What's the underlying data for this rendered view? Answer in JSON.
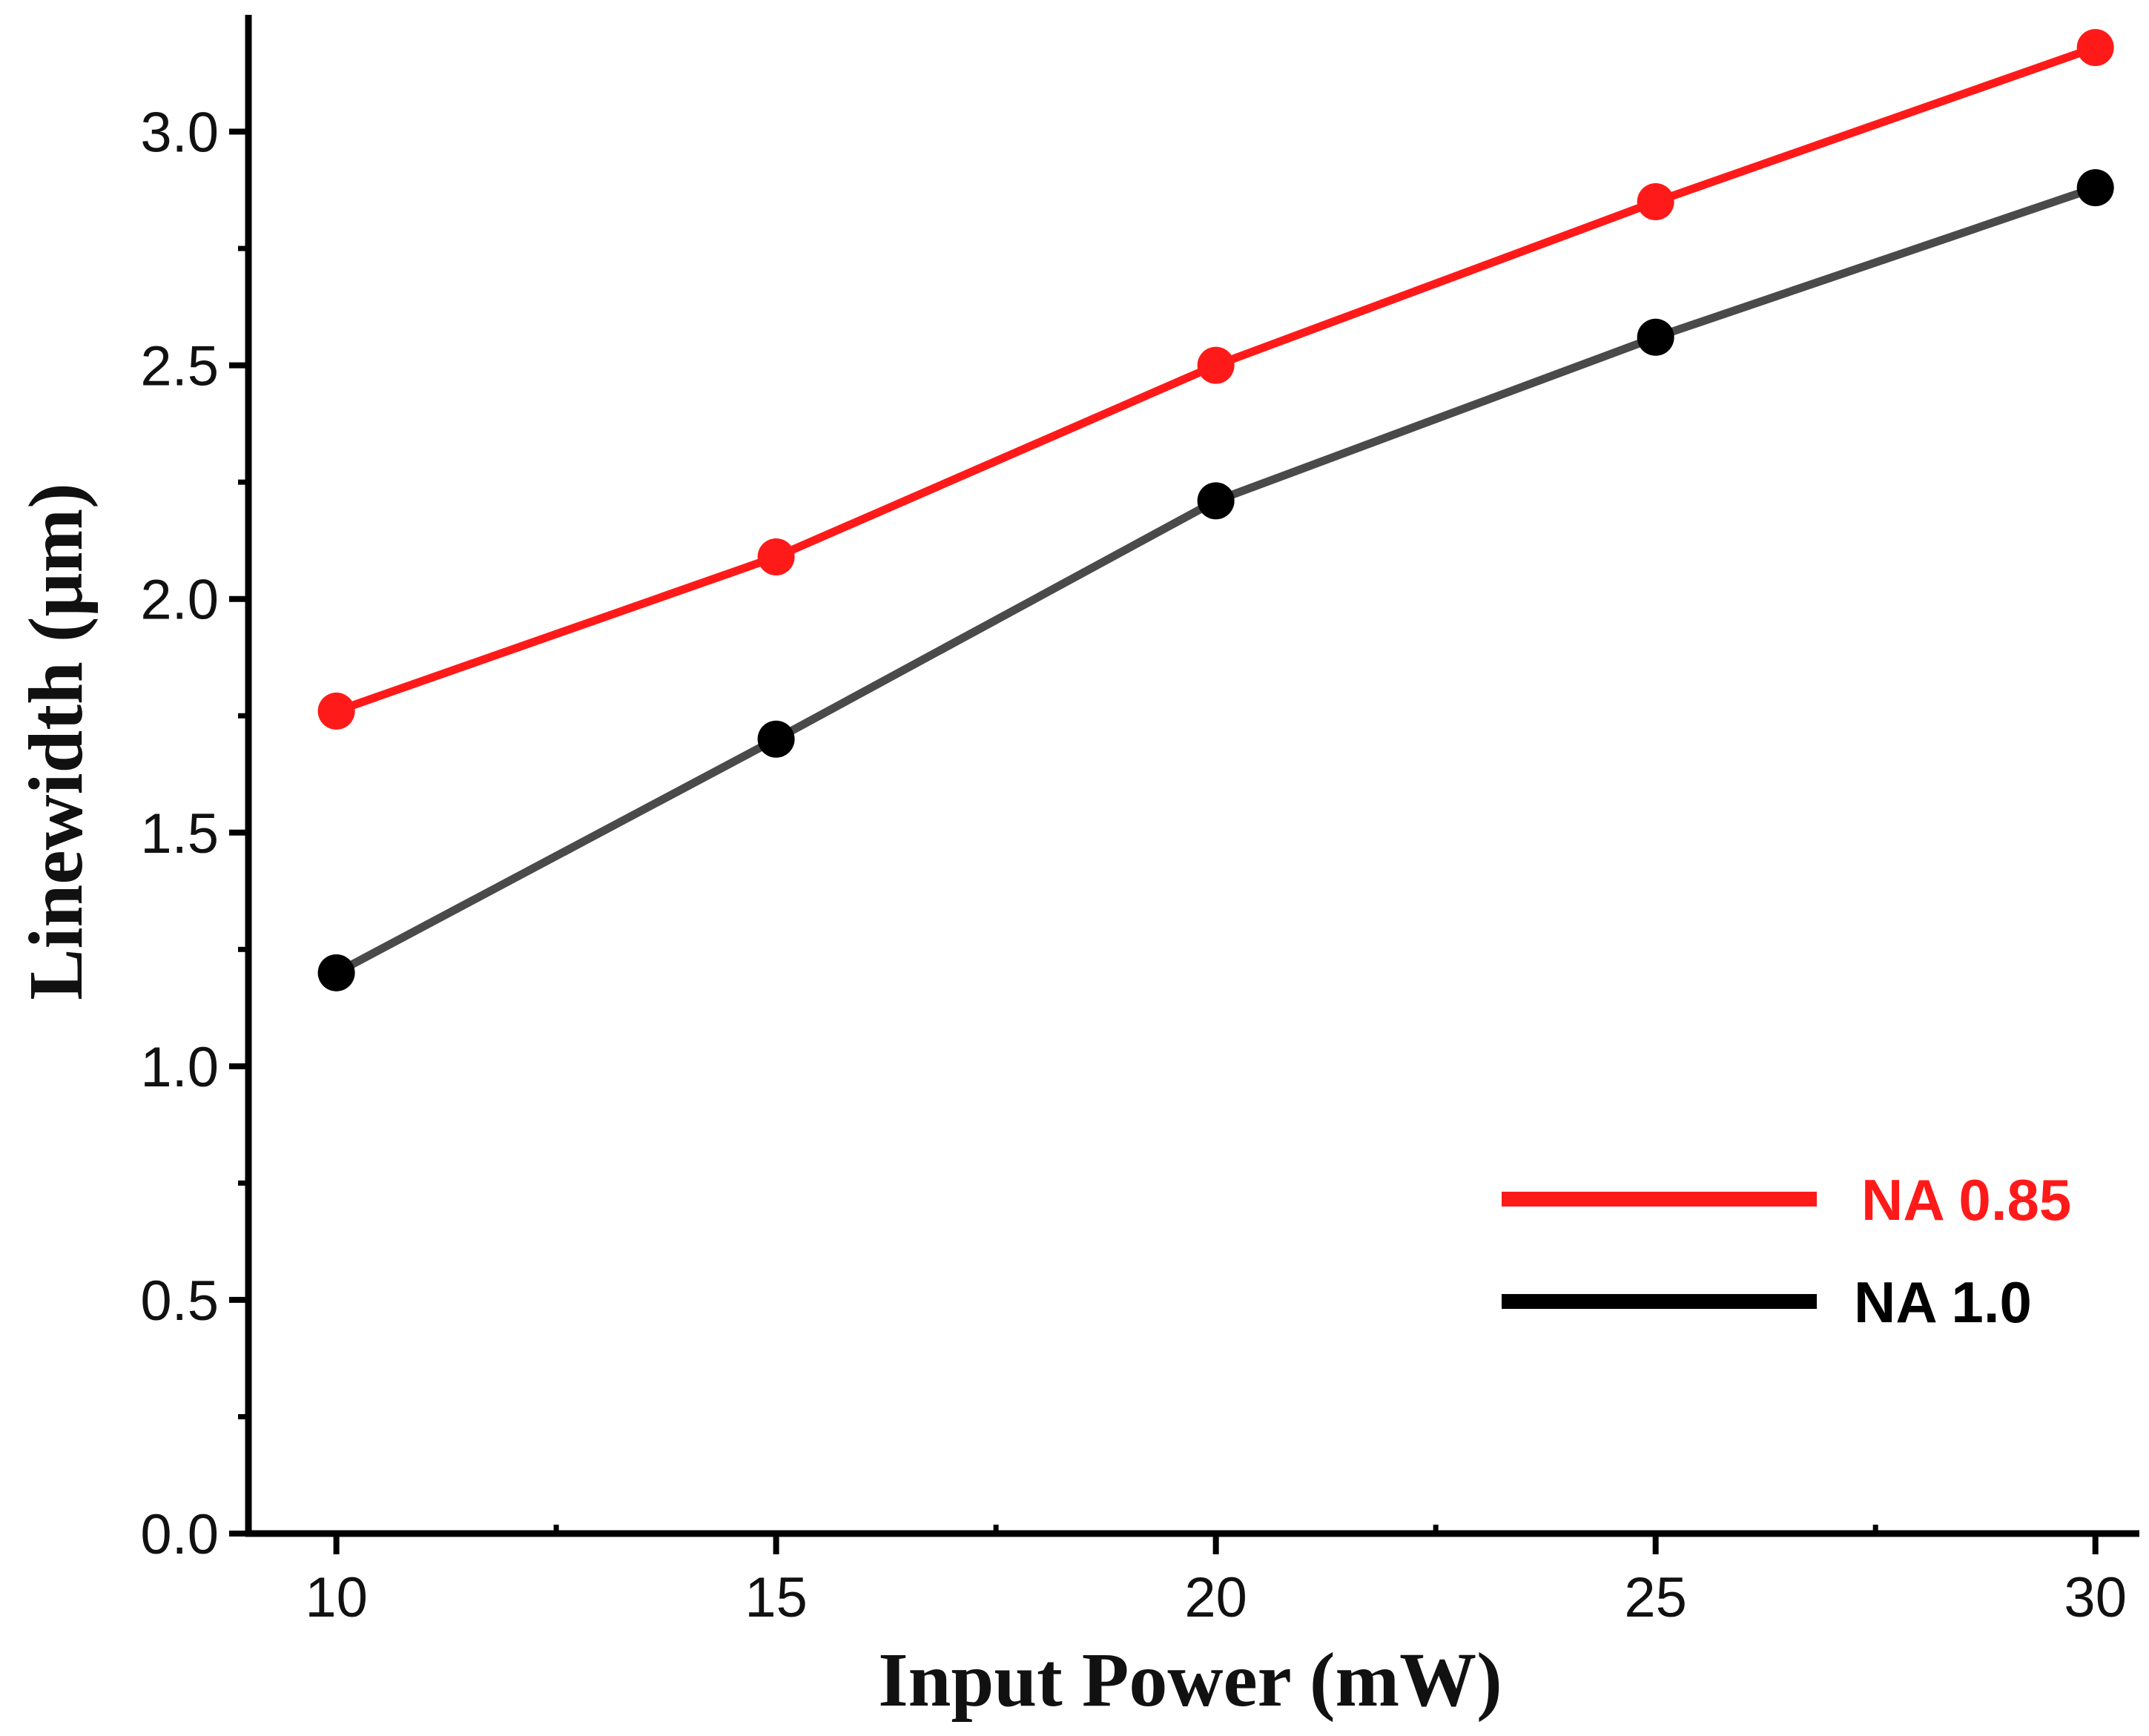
{
  "chart_data": {
    "type": "line",
    "title": "",
    "xlabel": "Input Power (mW)",
    "ylabel": "Linewidth (μm)",
    "xlim": [
      9,
      30.5
    ],
    "ylim": [
      0,
      3.25
    ],
    "x_ticks": [
      10,
      15,
      20,
      25,
      30
    ],
    "x_tick_labels": [
      "10",
      "15",
      "20",
      "25",
      "30"
    ],
    "x_minor_ticks": [
      12.5,
      17.5,
      22.5,
      27.5
    ],
    "y_ticks": [
      0.0,
      0.5,
      1.0,
      1.5,
      2.0,
      2.5,
      3.0
    ],
    "y_tick_labels": [
      "0.0",
      "0.5",
      "1.0",
      "1.5",
      "2.0",
      "2.5",
      "3.0"
    ],
    "y_minor_ticks": [
      0.25,
      0.75,
      1.25,
      1.75,
      2.25,
      2.75
    ],
    "grid": false,
    "legend_position": "bottom-right",
    "series": [
      {
        "name": "NA 0.85",
        "color": "#ff1a1a",
        "x": [
          10,
          15,
          20,
          25,
          30
        ],
        "values": [
          1.76,
          2.09,
          2.5,
          2.85,
          3.18
        ]
      },
      {
        "name": "NA 1.0",
        "color": "#000000",
        "line_color": "#4a4a4a",
        "x": [
          10,
          15,
          20,
          25,
          30
        ],
        "values": [
          1.2,
          1.7,
          2.21,
          2.56,
          2.88
        ]
      }
    ]
  }
}
